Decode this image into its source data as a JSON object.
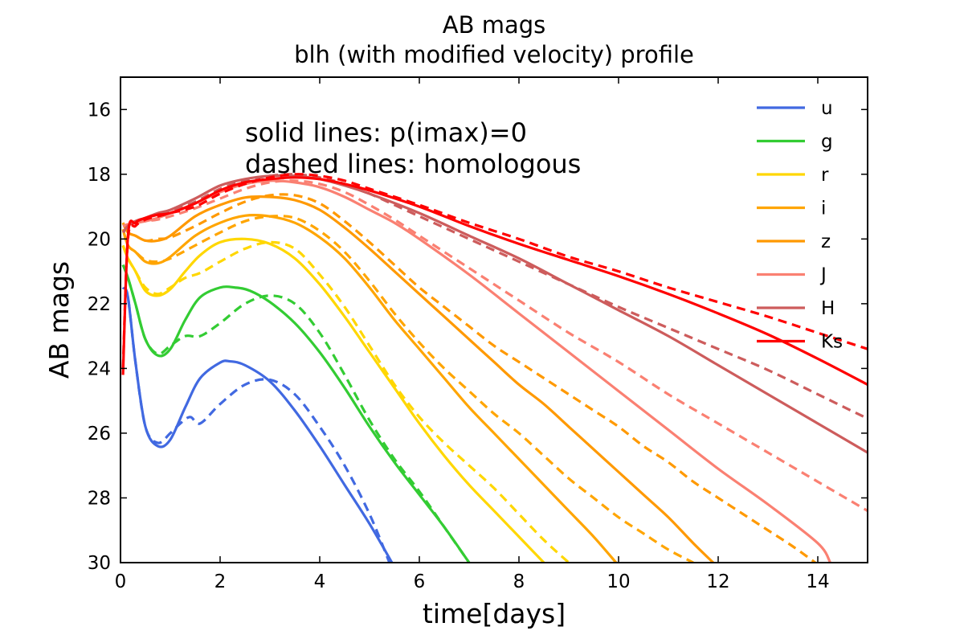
{
  "chart_data": {
    "type": "line",
    "title": "AB mags",
    "subtitle": "blh (with modified velocity) profile",
    "xlabel": "time[days]",
    "ylabel": "AB mags",
    "xlim": [
      0,
      15
    ],
    "ylim": [
      30,
      15
    ],
    "y_inverted": true,
    "xticks": [
      0,
      2,
      4,
      6,
      8,
      10,
      12,
      14
    ],
    "yticks": [
      16,
      18,
      20,
      22,
      24,
      26,
      28,
      30
    ],
    "grid": false,
    "legend_position": "top-right",
    "annotations": [
      "solid lines: p(imax)=0",
      "dashed lines: homologous"
    ],
    "series": [
      {
        "name": "u",
        "color": "#4169e1",
        "solid": {
          "x": [
            0.05,
            0.15,
            0.3,
            0.5,
            0.75,
            1.0,
            1.3,
            1.6,
            2.0,
            2.2,
            2.5,
            3.0,
            3.5,
            4.0,
            4.5,
            5.0,
            5.45
          ],
          "y": [
            21.5,
            21.8,
            23.8,
            25.8,
            26.4,
            26.2,
            25.2,
            24.3,
            23.82,
            23.78,
            23.9,
            24.4,
            25.3,
            26.4,
            27.6,
            28.8,
            30.0
          ]
        },
        "dashed": {
          "x": [
            0.05,
            0.15,
            0.3,
            0.5,
            0.75,
            1.0,
            1.2,
            1.4,
            1.6,
            2.0,
            2.5,
            3.0,
            3.5,
            4.0,
            4.5,
            5.0,
            5.4
          ],
          "y": [
            21.5,
            21.8,
            23.8,
            25.8,
            26.3,
            26.0,
            25.7,
            25.5,
            25.7,
            25.1,
            24.5,
            24.35,
            24.8,
            25.8,
            27.0,
            28.5,
            30.0
          ]
        }
      },
      {
        "name": "g",
        "color": "#33cc33",
        "solid": {
          "x": [
            0.05,
            0.15,
            0.3,
            0.5,
            0.75,
            1.0,
            1.3,
            1.6,
            2.0,
            2.3,
            2.6,
            3.0,
            3.5,
            4.0,
            4.5,
            5.0,
            5.5,
            6.0,
            6.5,
            7.0
          ],
          "y": [
            20.8,
            21.2,
            22.0,
            23.1,
            23.6,
            23.4,
            22.5,
            21.8,
            21.5,
            21.5,
            21.6,
            21.95,
            22.6,
            23.5,
            24.6,
            25.8,
            26.9,
            27.9,
            28.9,
            30.0
          ]
        },
        "dashed": {
          "x": [
            0.05,
            0.15,
            0.3,
            0.5,
            0.75,
            1.0,
            1.3,
            1.6,
            2.0,
            2.5,
            3.0,
            3.5,
            4.0,
            4.5,
            5.0,
            5.5,
            6.0,
            6.5,
            7.0
          ],
          "y": [
            20.8,
            21.2,
            22.0,
            23.1,
            23.55,
            23.3,
            23.0,
            23.0,
            22.6,
            22.0,
            21.75,
            22.0,
            22.9,
            24.2,
            25.6,
            26.8,
            27.8,
            28.9,
            30.0
          ]
        }
      },
      {
        "name": "r",
        "color": "#ffd700",
        "solid": {
          "x": [
            0.05,
            0.15,
            0.3,
            0.5,
            0.75,
            1.0,
            1.3,
            1.6,
            2.0,
            2.5,
            3.0,
            3.5,
            4.0,
            4.5,
            5.0,
            5.5,
            6.0,
            6.5,
            7.0,
            7.5,
            8.0,
            8.5
          ],
          "y": [
            20.2,
            20.6,
            21.0,
            21.6,
            21.75,
            21.55,
            21.0,
            20.5,
            20.1,
            20.0,
            20.15,
            20.6,
            21.4,
            22.4,
            23.5,
            24.6,
            25.7,
            26.7,
            27.6,
            28.4,
            29.2,
            30.0
          ]
        },
        "dashed": {
          "x": [
            0.05,
            0.15,
            0.3,
            0.5,
            0.75,
            1.0,
            1.3,
            1.6,
            2.0,
            2.5,
            3.0,
            3.5,
            4.0,
            4.5,
            5.0,
            5.5,
            6.0,
            6.5,
            7.0,
            7.5,
            8.0,
            8.5,
            9.0
          ],
          "y": [
            20.2,
            20.6,
            21.0,
            21.5,
            21.7,
            21.5,
            21.2,
            21.05,
            20.7,
            20.3,
            20.1,
            20.3,
            21.1,
            22.1,
            23.3,
            24.5,
            25.5,
            26.3,
            27.0,
            27.7,
            28.5,
            29.3,
            30.0
          ]
        }
      },
      {
        "name": "i",
        "color": "#ffa500",
        "solid": {
          "x": [
            0.05,
            0.15,
            0.3,
            0.5,
            0.75,
            1.0,
            1.5,
            2.0,
            2.5,
            3.0,
            3.5,
            4.0,
            4.5,
            5.0,
            5.5,
            6.0,
            6.5,
            7.0,
            7.5,
            8.0,
            8.5,
            9.0,
            9.5,
            9.95
          ],
          "y": [
            19.7,
            20.2,
            20.4,
            20.7,
            20.75,
            20.55,
            19.9,
            19.5,
            19.28,
            19.3,
            19.5,
            19.95,
            20.6,
            21.5,
            22.5,
            23.4,
            24.3,
            25.2,
            26.0,
            26.8,
            27.6,
            28.4,
            29.2,
            30.0
          ]
        },
        "dashed": {
          "x": [
            0.05,
            0.15,
            0.3,
            0.5,
            0.75,
            1.0,
            1.5,
            2.0,
            2.5,
            3.0,
            3.5,
            4.0,
            4.5,
            5.0,
            5.5,
            6.0,
            6.5,
            7.0,
            7.5,
            8.0,
            8.5,
            9.0,
            9.5,
            10.0,
            10.5,
            11.0,
            11.5
          ],
          "y": [
            19.7,
            20.2,
            20.4,
            20.65,
            20.7,
            20.6,
            20.2,
            19.8,
            19.45,
            19.3,
            19.35,
            19.75,
            20.4,
            21.3,
            22.3,
            23.2,
            24.0,
            24.7,
            25.4,
            26.0,
            26.7,
            27.4,
            28.0,
            28.6,
            29.1,
            29.6,
            30.0
          ]
        }
      },
      {
        "name": "z",
        "color": "#ff9900",
        "solid": {
          "x": [
            0.05,
            0.15,
            0.3,
            0.5,
            0.75,
            1.0,
            1.5,
            2.0,
            2.5,
            3.0,
            3.5,
            4.0,
            4.5,
            5.0,
            5.5,
            6.0,
            6.5,
            7.0,
            7.5,
            8.0,
            8.5,
            9.0,
            9.5,
            10.0,
            10.5,
            11.0,
            11.5,
            11.9
          ],
          "y": [
            19.5,
            19.8,
            19.9,
            20.05,
            20.05,
            19.9,
            19.3,
            18.95,
            18.72,
            18.7,
            18.8,
            19.1,
            19.65,
            20.3,
            21.0,
            21.7,
            22.4,
            23.1,
            23.8,
            24.5,
            25.1,
            25.8,
            26.5,
            27.2,
            27.9,
            28.6,
            29.4,
            30.0
          ]
        },
        "dashed": {
          "x": [
            0.05,
            0.15,
            0.3,
            0.5,
            0.75,
            1.0,
            1.5,
            2.0,
            2.5,
            3.0,
            3.5,
            4.0,
            4.5,
            5.0,
            5.5,
            6.0,
            6.5,
            7.0,
            7.5,
            8.0,
            8.5,
            9.0,
            9.5,
            10.0,
            10.5,
            11.0,
            11.5,
            12.0,
            12.5,
            13.0,
            13.5,
            13.95
          ],
          "y": [
            19.5,
            19.8,
            19.9,
            20.05,
            20.0,
            19.95,
            19.6,
            19.2,
            18.85,
            18.65,
            18.65,
            18.9,
            19.45,
            20.1,
            20.8,
            21.5,
            22.1,
            22.7,
            23.3,
            23.8,
            24.3,
            24.8,
            25.3,
            25.8,
            26.4,
            26.9,
            27.5,
            28.0,
            28.5,
            29.0,
            29.5,
            30.0
          ]
        }
      },
      {
        "name": "J",
        "color": "#fa8072",
        "solid": {
          "x": [
            0.05,
            0.15,
            0.3,
            0.5,
            0.75,
            1.0,
            1.5,
            2.0,
            2.5,
            3.0,
            3.5,
            4.0,
            4.5,
            5.0,
            5.5,
            6.0,
            7.0,
            8.0,
            9.0,
            10.0,
            11.0,
            12.0,
            13.0,
            14.0,
            14.25
          ],
          "y": [
            19.6,
            19.55,
            19.5,
            19.45,
            19.35,
            19.2,
            18.9,
            18.55,
            18.3,
            18.2,
            18.25,
            18.4,
            18.7,
            19.1,
            19.5,
            20.0,
            21.1,
            22.3,
            23.5,
            24.7,
            25.9,
            27.1,
            28.2,
            29.4,
            30.0
          ]
        },
        "dashed": {
          "x": [
            0.05,
            0.15,
            0.3,
            0.5,
            0.75,
            1.0,
            1.5,
            2.0,
            2.5,
            3.0,
            3.5,
            4.0,
            4.5,
            5.0,
            5.5,
            6.0,
            7.0,
            8.0,
            9.0,
            10.0,
            11.0,
            12.0,
            13.0,
            14.0,
            15.0
          ],
          "y": [
            19.6,
            19.55,
            19.5,
            19.45,
            19.4,
            19.3,
            19.05,
            18.75,
            18.45,
            18.25,
            18.2,
            18.3,
            18.55,
            18.95,
            19.4,
            19.9,
            20.9,
            21.9,
            22.9,
            23.8,
            24.8,
            25.7,
            26.6,
            27.5,
            28.4
          ]
        }
      },
      {
        "name": "H",
        "color": "#cd5c5c",
        "solid": {
          "x": [
            0.05,
            0.15,
            0.3,
            0.5,
            0.75,
            1.0,
            1.5,
            2.0,
            2.5,
            3.0,
            3.5,
            4.0,
            4.5,
            5.0,
            6.0,
            7.0,
            8.0,
            9.0,
            10.0,
            11.0,
            12.0,
            13.0,
            14.0,
            15.0
          ],
          "y": [
            19.8,
            19.6,
            19.45,
            19.35,
            19.2,
            19.1,
            18.75,
            18.35,
            18.15,
            18.05,
            18.05,
            18.15,
            18.35,
            18.6,
            19.2,
            19.9,
            20.6,
            21.4,
            22.2,
            23.0,
            23.9,
            24.8,
            25.7,
            26.6
          ]
        },
        "dashed": {
          "x": [
            0.05,
            0.15,
            0.3,
            0.5,
            0.75,
            1.0,
            1.5,
            2.0,
            2.5,
            3.0,
            3.5,
            4.0,
            4.5,
            5.0,
            6.0,
            7.0,
            8.0,
            9.0,
            10.0,
            11.0,
            12.0,
            13.0,
            14.0,
            15.0
          ],
          "y": [
            19.8,
            19.6,
            19.45,
            19.35,
            19.25,
            19.15,
            18.85,
            18.45,
            18.2,
            18.05,
            18.0,
            18.1,
            18.3,
            18.6,
            19.3,
            20.0,
            20.7,
            21.4,
            22.1,
            22.75,
            23.4,
            24.05,
            24.8,
            25.55
          ]
        }
      },
      {
        "name": "Ks",
        "color": "#ff0000",
        "solid": {
          "x": [
            0.05,
            0.15,
            0.3,
            0.5,
            0.75,
            1.0,
            1.5,
            2.0,
            2.5,
            3.0,
            3.5,
            4.0,
            4.5,
            5.0,
            6.0,
            7.0,
            8.0,
            9.0,
            10.0,
            11.0,
            12.0,
            13.0,
            14.0,
            15.0
          ],
          "y": [
            24.2,
            19.9,
            19.5,
            19.35,
            19.25,
            19.2,
            18.9,
            18.5,
            18.25,
            18.15,
            18.1,
            18.15,
            18.3,
            18.5,
            19.0,
            19.6,
            20.15,
            20.65,
            21.15,
            21.7,
            22.3,
            22.95,
            23.7,
            24.5
          ]
        },
        "dashed": {
          "x": [
            0.05,
            0.15,
            0.3,
            0.5,
            0.75,
            1.0,
            1.5,
            2.0,
            2.5,
            3.0,
            3.5,
            4.0,
            4.5,
            5.0,
            6.0,
            7.0,
            8.0,
            9.0,
            10.0,
            11.0,
            12.0,
            13.0,
            14.0,
            15.0
          ],
          "y": [
            24.0,
            20.0,
            19.6,
            19.4,
            19.3,
            19.2,
            19.0,
            18.6,
            18.3,
            18.1,
            18.0,
            18.05,
            18.2,
            18.45,
            18.95,
            19.5,
            20.0,
            20.55,
            21.0,
            21.5,
            21.95,
            22.4,
            22.9,
            23.4
          ]
        }
      }
    ]
  }
}
